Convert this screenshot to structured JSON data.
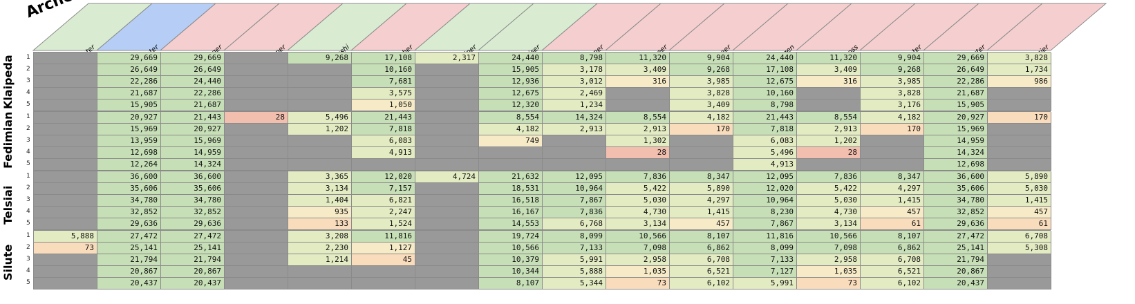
{
  "title": "Archer",
  "columns": [
    {
      "label": "Hunter",
      "color": "#d9ecd2"
    },
    {
      "label": "Quarrel Shooter",
      "color": "#b6cdf5"
    },
    {
      "label": "Ranger",
      "color": "#f5cfcf"
    },
    {
      "label": "Sapper",
      "color": "#f5cfcf"
    },
    {
      "label": "Wugushi",
      "color": "#d9ecd2"
    },
    {
      "label": "Fletcher",
      "color": "#f5cfcf"
    },
    {
      "label": "Pied Piper",
      "color": "#d9ecd2"
    },
    {
      "label": "Appraiser",
      "color": "#d9ecd2"
    },
    {
      "label": "Falconer",
      "color": "#f5cfcf"
    },
    {
      "label": "Cannoneer",
      "color": "#f5cfcf"
    },
    {
      "label": "Musketeer",
      "color": "#f5cfcf"
    },
    {
      "label": "Mergen",
      "color": "#f5cfcf"
    },
    {
      "label": "Matross",
      "color": "#f5cfcf"
    },
    {
      "label": "Tiger Hunter",
      "color": "#f5cfcf"
    },
    {
      "label": "Arbalester",
      "color": "#f5cfcf"
    },
    {
      "label": "Arquebusier",
      "color": "#f5cfcf"
    }
  ],
  "groups": [
    {
      "name": "Klaipeda",
      "rows": [
        {
          "num": "1",
          "cells": [
            "",
            "29,669",
            "29,669",
            "",
            "9,268",
            "17,108",
            "2,317",
            "24,440",
            "8,798",
            "11,320",
            "9,904",
            "24,440",
            "11,320",
            "9,904",
            "29,669",
            "3,828"
          ]
        },
        {
          "num": "2",
          "cells": [
            "",
            "26,649",
            "26,649",
            "",
            "",
            "10,160",
            "",
            "15,905",
            "3,178",
            "3,409",
            "9,268",
            "17,108",
            "3,409",
            "9,268",
            "26,649",
            "1,734"
          ]
        },
        {
          "num": "3",
          "cells": [
            "",
            "22,286",
            "24,440",
            "",
            "",
            "7,681",
            "",
            "12,936",
            "3,012",
            "316",
            "3,985",
            "12,675",
            "316",
            "3,985",
            "22,286",
            "986"
          ]
        },
        {
          "num": "4",
          "cells": [
            "",
            "21,687",
            "22,286",
            "",
            "",
            "3,575",
            "",
            "12,675",
            "2,469",
            "",
            "3,828",
            "10,160",
            "",
            "3,828",
            "21,687",
            ""
          ]
        },
        {
          "num": "5",
          "cells": [
            "",
            "15,905",
            "21,687",
            "",
            "",
            "1,050",
            "",
            "12,320",
            "1,234",
            "",
            "3,409",
            "8,798",
            "",
            "3,176",
            "15,905",
            ""
          ]
        }
      ]
    },
    {
      "name": "Fedimian",
      "rows": [
        {
          "num": "1",
          "cells": [
            "",
            "20,927",
            "21,443",
            "28",
            "5,496",
            "21,443",
            "",
            "8,554",
            "14,324",
            "8,554",
            "4,182",
            "21,443",
            "8,554",
            "4,182",
            "20,927",
            "170"
          ]
        },
        {
          "num": "2",
          "cells": [
            "",
            "15,969",
            "20,927",
            "",
            "1,202",
            "7,818",
            "",
            "4,182",
            "2,913",
            "2,913",
            "170",
            "7,818",
            "2,913",
            "170",
            "15,969",
            ""
          ]
        },
        {
          "num": "3",
          "cells": [
            "",
            "13,959",
            "15,969",
            "",
            "",
            "6,083",
            "",
            "749",
            "",
            "1,302",
            "",
            "6,083",
            "1,202",
            "",
            "14,959",
            ""
          ]
        },
        {
          "num": "4",
          "cells": [
            "",
            "12,698",
            "14,959",
            "",
            "",
            "4,913",
            "",
            "",
            "",
            "28",
            "",
            "5,496",
            "28",
            "",
            "14,324",
            ""
          ]
        },
        {
          "num": "5",
          "cells": [
            "",
            "12,264",
            "14,324",
            "",
            "",
            "",
            "",
            "",
            "",
            "",
            "",
            "4,913",
            "",
            "",
            "12,698",
            ""
          ]
        }
      ]
    },
    {
      "name": "Telsiai",
      "rows": [
        {
          "num": "1",
          "cells": [
            "",
            "36,600",
            "36,600",
            "",
            "3,365",
            "12,020",
            "4,724",
            "21,632",
            "12,095",
            "7,836",
            "8,347",
            "12,095",
            "7,836",
            "8,347",
            "36,600",
            "5,890"
          ]
        },
        {
          "num": "2",
          "cells": [
            "",
            "35,606",
            "35,606",
            "",
            "3,134",
            "7,157",
            "",
            "18,531",
            "10,964",
            "5,422",
            "5,890",
            "12,020",
            "5,422",
            "4,297",
            "35,606",
            "5,030"
          ]
        },
        {
          "num": "3",
          "cells": [
            "",
            "34,780",
            "34,780",
            "",
            "1,404",
            "6,821",
            "",
            "16,518",
            "7,867",
            "5,030",
            "4,297",
            "10,964",
            "5,030",
            "1,415",
            "34,780",
            "1,415"
          ]
        },
        {
          "num": "4",
          "cells": [
            "",
            "32,852",
            "32,852",
            "",
            "935",
            "2,247",
            "",
            "16,167",
            "7,836",
            "4,730",
            "1,415",
            "8,230",
            "4,730",
            "457",
            "32,852",
            "457"
          ]
        },
        {
          "num": "5",
          "cells": [
            "",
            "29,636",
            "29,636",
            "",
            "133",
            "1,524",
            "",
            "14,553",
            "6,768",
            "3,134",
            "457",
            "7,867",
            "3,134",
            "61",
            "29,636",
            "61"
          ]
        }
      ]
    },
    {
      "name": "Silute",
      "rows": [
        {
          "num": "1",
          "cells": [
            "5,888",
            "27,472",
            "27,472",
            "",
            "3,208",
            "11,816",
            "",
            "19,724",
            "8,099",
            "10,566",
            "8,107",
            "11,816",
            "10,566",
            "8,107",
            "27,472",
            "6,708"
          ]
        },
        {
          "num": "2",
          "cells": [
            "73",
            "25,141",
            "25,141",
            "",
            "2,230",
            "1,127",
            "",
            "10,566",
            "7,133",
            "7,098",
            "6,862",
            "8,099",
            "7,098",
            "6,862",
            "25,141",
            "5,308"
          ]
        },
        {
          "num": "3",
          "cells": [
            "",
            "21,794",
            "21,794",
            "",
            "1,214",
            "45",
            "",
            "10,379",
            "5,991",
            "2,958",
            "6,708",
            "7,133",
            "2,958",
            "6,708",
            "21,794",
            ""
          ]
        },
        {
          "num": "4",
          "cells": [
            "",
            "20,867",
            "20,867",
            "",
            "",
            "",
            "",
            "10,344",
            "5,888",
            "1,035",
            "6,521",
            "7,127",
            "1,035",
            "6,521",
            "20,867",
            ""
          ]
        },
        {
          "num": "5",
          "cells": [
            "",
            "20,437",
            "20,437",
            "",
            "",
            "",
            "",
            "8,107",
            "5,344",
            "73",
            "6,102",
            "5,991",
            "73",
            "6,102",
            "20,437",
            ""
          ]
        }
      ]
    }
  ],
  "colors": {
    "empty": "#999999",
    "scale": [
      "#e8a29c",
      "#f2bfae",
      "#f9dcbc",
      "#f6ebc6",
      "#e3ebc2",
      "#c6dfb6"
    ]
  }
}
